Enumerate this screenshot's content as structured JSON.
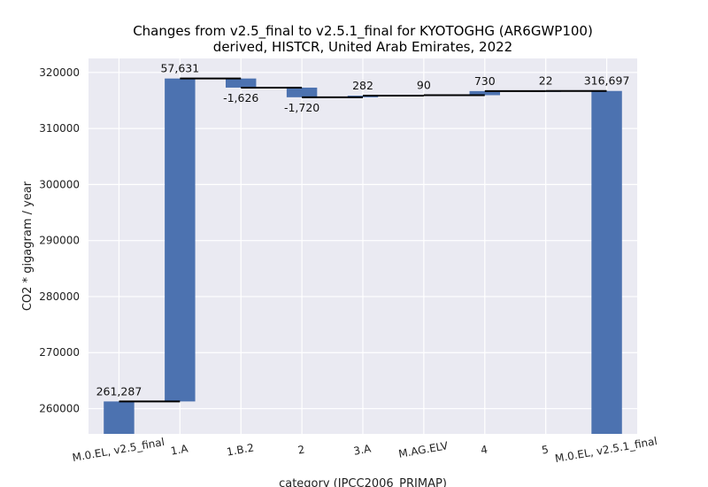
{
  "chart_data": {
    "type": "bar",
    "subtype": "waterfall",
    "title": "Changes from v2.5_final to v2.5.1_final for KYOTOGHG (AR6GWP100)",
    "subtitle": "derived, HISTCR, United Arab Emirates, 2022",
    "xlabel": "category (IPCC2006_PRIMAP)",
    "ylabel": "CO2 * gigagram / year",
    "ylim": [
      255500,
      322500
    ],
    "yticks": [
      260000,
      270000,
      280000,
      290000,
      300000,
      310000,
      320000
    ],
    "ytick_labels": [
      "260000",
      "270000",
      "280000",
      "290000",
      "300000",
      "310000",
      "320000"
    ],
    "grid": true,
    "legend": "none",
    "bar_color": "#4c72b0",
    "background_color": "#eaeaf2",
    "categories": [
      "M.0.EL, v2.5_final",
      "1.A",
      "1.B.2",
      "2",
      "3.A",
      "M.AG.ELV",
      "4",
      "5",
      "M.0.EL, v2.5.1_final"
    ],
    "kinds": [
      "total",
      "delta",
      "delta",
      "delta",
      "delta",
      "delta",
      "delta",
      "delta",
      "total"
    ],
    "values": [
      261287,
      57631,
      -1626,
      -1720,
      282,
      90,
      730,
      22,
      316697
    ],
    "value_labels": [
      "261,287",
      "57,631",
      "-1,626",
      "-1,720",
      "282",
      "90",
      "730",
      "22",
      "316,697"
    ]
  }
}
